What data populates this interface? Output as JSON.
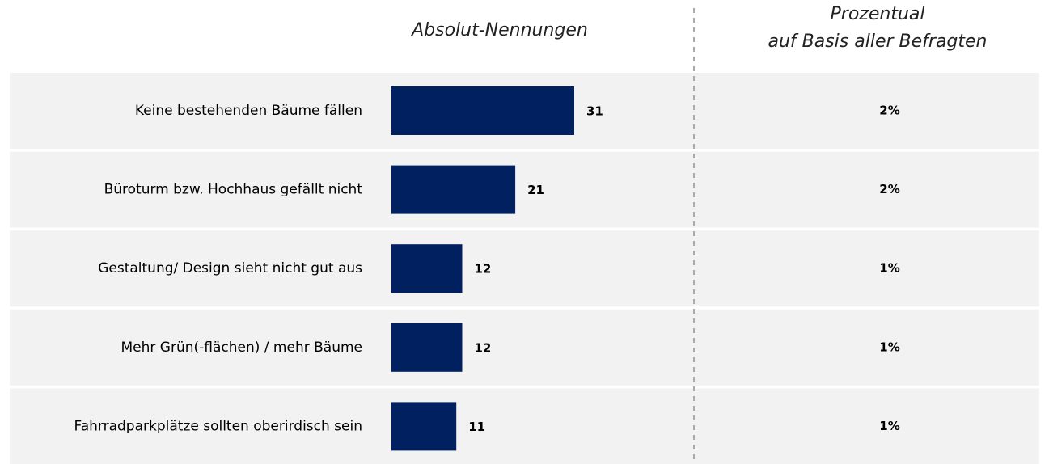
{
  "chart_data": {
    "type": "bar",
    "bar_header": "Absolut-Nennungen",
    "percent_header": [
      "Prozentual",
      "auf Basis aller Befragten"
    ],
    "categories": [
      "Keine bestehenden Bäume fällen",
      "Büroturm bzw. Hochhaus gefällt nicht",
      "Gestaltung/ Design sieht nicht gut aus",
      "Mehr Grün(-flächen) / mehr Bäume",
      "Fahrradparkplätze sollten oberirdisch sein"
    ],
    "values": [
      31,
      21,
      12,
      12,
      11
    ],
    "color": "#002060",
    "percent": {
      "values": [
        2,
        2,
        1,
        1,
        1
      ],
      "value_labels": [
        "2%",
        "2%",
        "1%",
        "1%",
        "1%"
      ]
    }
  }
}
